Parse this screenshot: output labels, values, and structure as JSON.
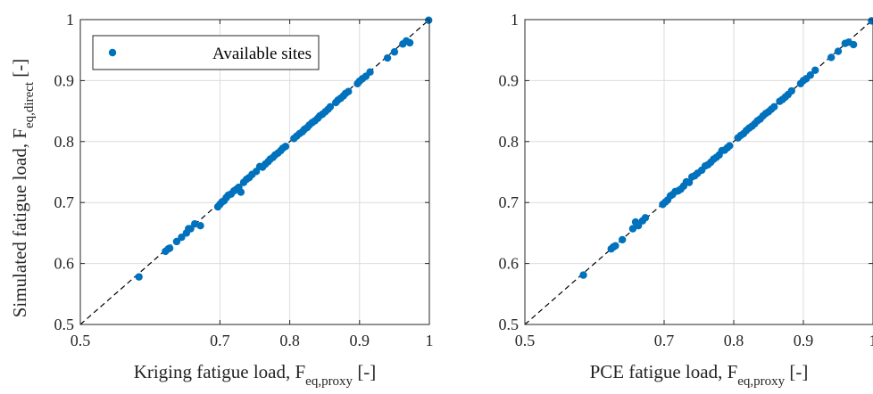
{
  "legend": {
    "label": "Available sites"
  },
  "colors": {
    "marker": "#0072BD",
    "axis": "#262626",
    "grid": "#DCDCDC",
    "diagonal": "#000000"
  },
  "chart_data": [
    {
      "type": "scatter",
      "title": "",
      "xlabel": {
        "main": "Kriging fatigue load, F",
        "sub": "eq,proxy",
        "tail": " [-]"
      },
      "ylabel": {
        "main": "Simulated fatigue load, F",
        "sub": "eq,direct",
        "tail": " [-]"
      },
      "xlim": [
        0.5,
        1
      ],
      "ylim": [
        0.5,
        1
      ],
      "xticks": [
        "0.5",
        "0.7",
        "0.8",
        "0.9",
        "1"
      ],
      "xtick_values": [
        0.5,
        0.7,
        0.8,
        0.9,
        1
      ],
      "yticks": [
        "0.5",
        "0.6",
        "0.7",
        "0.8",
        "0.9",
        "1"
      ],
      "ytick_values": [
        0.5,
        0.6,
        0.7,
        0.8,
        0.9,
        1
      ],
      "grid": true,
      "legend_position": "top-left",
      "reference_line": "y = x (dashed)",
      "series": [
        {
          "name": "Available sites",
          "points": [
            [
              0.584,
              0.578
            ],
            [
              0.622,
              0.62
            ],
            [
              0.626,
              0.624
            ],
            [
              0.628,
              0.625
            ],
            [
              0.638,
              0.636
            ],
            [
              0.645,
              0.643
            ],
            [
              0.652,
              0.65
            ],
            [
              0.655,
              0.657
            ],
            [
              0.658,
              0.657
            ],
            [
              0.664,
              0.665
            ],
            [
              0.672,
              0.662
            ],
            [
              0.697,
              0.693
            ],
            [
              0.7,
              0.697
            ],
            [
              0.703,
              0.701
            ],
            [
              0.706,
              0.703
            ],
            [
              0.709,
              0.708
            ],
            [
              0.712,
              0.712
            ],
            [
              0.716,
              0.714
            ],
            [
              0.72,
              0.719
            ],
            [
              0.724,
              0.722
            ],
            [
              0.727,
              0.725
            ],
            [
              0.73,
              0.717
            ],
            [
              0.734,
              0.733
            ],
            [
              0.738,
              0.738
            ],
            [
              0.742,
              0.741
            ],
            [
              0.746,
              0.746
            ],
            [
              0.752,
              0.751
            ],
            [
              0.757,
              0.759
            ],
            [
              0.761,
              0.758
            ],
            [
              0.765,
              0.763
            ],
            [
              0.769,
              0.767
            ],
            [
              0.772,
              0.771
            ],
            [
              0.776,
              0.774
            ],
            [
              0.779,
              0.778
            ],
            [
              0.783,
              0.781
            ],
            [
              0.787,
              0.785
            ],
            [
              0.79,
              0.789
            ],
            [
              0.794,
              0.792
            ],
            [
              0.806,
              0.805
            ],
            [
              0.81,
              0.809
            ],
            [
              0.814,
              0.813
            ],
            [
              0.818,
              0.816
            ],
            [
              0.821,
              0.82
            ],
            [
              0.825,
              0.823
            ],
            [
              0.828,
              0.827
            ],
            [
              0.832,
              0.831
            ],
            [
              0.836,
              0.834
            ],
            [
              0.84,
              0.838
            ],
            [
              0.843,
              0.842
            ],
            [
              0.847,
              0.845
            ],
            [
              0.851,
              0.849
            ],
            [
              0.855,
              0.853
            ],
            [
              0.858,
              0.857
            ],
            [
              0.866,
              0.864
            ],
            [
              0.869,
              0.868
            ],
            [
              0.873,
              0.871
            ],
            [
              0.877,
              0.875
            ],
            [
              0.88,
              0.879
            ],
            [
              0.884,
              0.882
            ],
            [
              0.897,
              0.895
            ],
            [
              0.9,
              0.899
            ],
            [
              0.904,
              0.903
            ],
            [
              0.909,
              0.907
            ],
            [
              0.915,
              0.914
            ],
            [
              0.94,
              0.937
            ],
            [
              0.95,
              0.947
            ],
            [
              0.962,
              0.96
            ],
            [
              0.967,
              0.965
            ],
            [
              0.972,
              0.962
            ],
            [
              0.999,
              0.999
            ]
          ]
        }
      ]
    },
    {
      "type": "scatter",
      "title": "",
      "xlabel": {
        "main": "PCE fatigue load, F",
        "sub": "eq,proxy",
        "tail": " [-]"
      },
      "ylabel": null,
      "xlim": [
        0.5,
        1
      ],
      "ylim": [
        0.5,
        1
      ],
      "xticks": [
        "0.5",
        "0.7",
        "0.8",
        "0.9",
        "1"
      ],
      "xtick_values": [
        0.5,
        0.7,
        0.8,
        0.9,
        1
      ],
      "yticks": [
        "0.5",
        "0.6",
        "0.7",
        "0.8",
        "0.9",
        "1"
      ],
      "ytick_values": [
        0.5,
        0.6,
        0.7,
        0.8,
        0.9,
        1
      ],
      "grid": true,
      "reference_line": "y = x (dashed)",
      "series": [
        {
          "name": "Available sites",
          "points": [
            [
              0.584,
              0.581
            ],
            [
              0.624,
              0.624
            ],
            [
              0.627,
              0.627
            ],
            [
              0.63,
              0.629
            ],
            [
              0.64,
              0.639
            ],
            [
              0.655,
              0.657
            ],
            [
              0.659,
              0.668
            ],
            [
              0.663,
              0.662
            ],
            [
              0.669,
              0.67
            ],
            [
              0.673,
              0.675
            ],
            [
              0.698,
              0.697
            ],
            [
              0.702,
              0.701
            ],
            [
              0.705,
              0.704
            ],
            [
              0.709,
              0.711
            ],
            [
              0.712,
              0.713
            ],
            [
              0.716,
              0.718
            ],
            [
              0.72,
              0.719
            ],
            [
              0.724,
              0.722
            ],
            [
              0.728,
              0.727
            ],
            [
              0.732,
              0.734
            ],
            [
              0.736,
              0.733
            ],
            [
              0.74,
              0.742
            ],
            [
              0.744,
              0.744
            ],
            [
              0.748,
              0.748
            ],
            [
              0.754,
              0.753
            ],
            [
              0.759,
              0.76
            ],
            [
              0.763,
              0.762
            ],
            [
              0.767,
              0.766
            ],
            [
              0.771,
              0.771
            ],
            [
              0.775,
              0.774
            ],
            [
              0.779,
              0.778
            ],
            [
              0.783,
              0.785
            ],
            [
              0.787,
              0.786
            ],
            [
              0.791,
              0.79
            ],
            [
              0.794,
              0.793
            ],
            [
              0.806,
              0.806
            ],
            [
              0.81,
              0.81
            ],
            [
              0.814,
              0.813
            ],
            [
              0.818,
              0.818
            ],
            [
              0.822,
              0.822
            ],
            [
              0.826,
              0.825
            ],
            [
              0.83,
              0.829
            ],
            [
              0.834,
              0.834
            ],
            [
              0.838,
              0.837
            ],
            [
              0.842,
              0.842
            ],
            [
              0.846,
              0.846
            ],
            [
              0.85,
              0.849
            ],
            [
              0.854,
              0.853
            ],
            [
              0.858,
              0.857
            ],
            [
              0.866,
              0.866
            ],
            [
              0.87,
              0.869
            ],
            [
              0.874,
              0.873
            ],
            [
              0.878,
              0.877
            ],
            [
              0.883,
              0.883
            ],
            [
              0.896,
              0.895
            ],
            [
              0.9,
              0.9
            ],
            [
              0.904,
              0.903
            ],
            [
              0.91,
              0.909
            ],
            [
              0.917,
              0.917
            ],
            [
              0.94,
              0.938
            ],
            [
              0.95,
              0.948
            ],
            [
              0.96,
              0.961
            ],
            [
              0.965,
              0.963
            ],
            [
              0.972,
              0.959
            ],
            [
              0.998,
              0.998
            ]
          ]
        }
      ]
    }
  ]
}
